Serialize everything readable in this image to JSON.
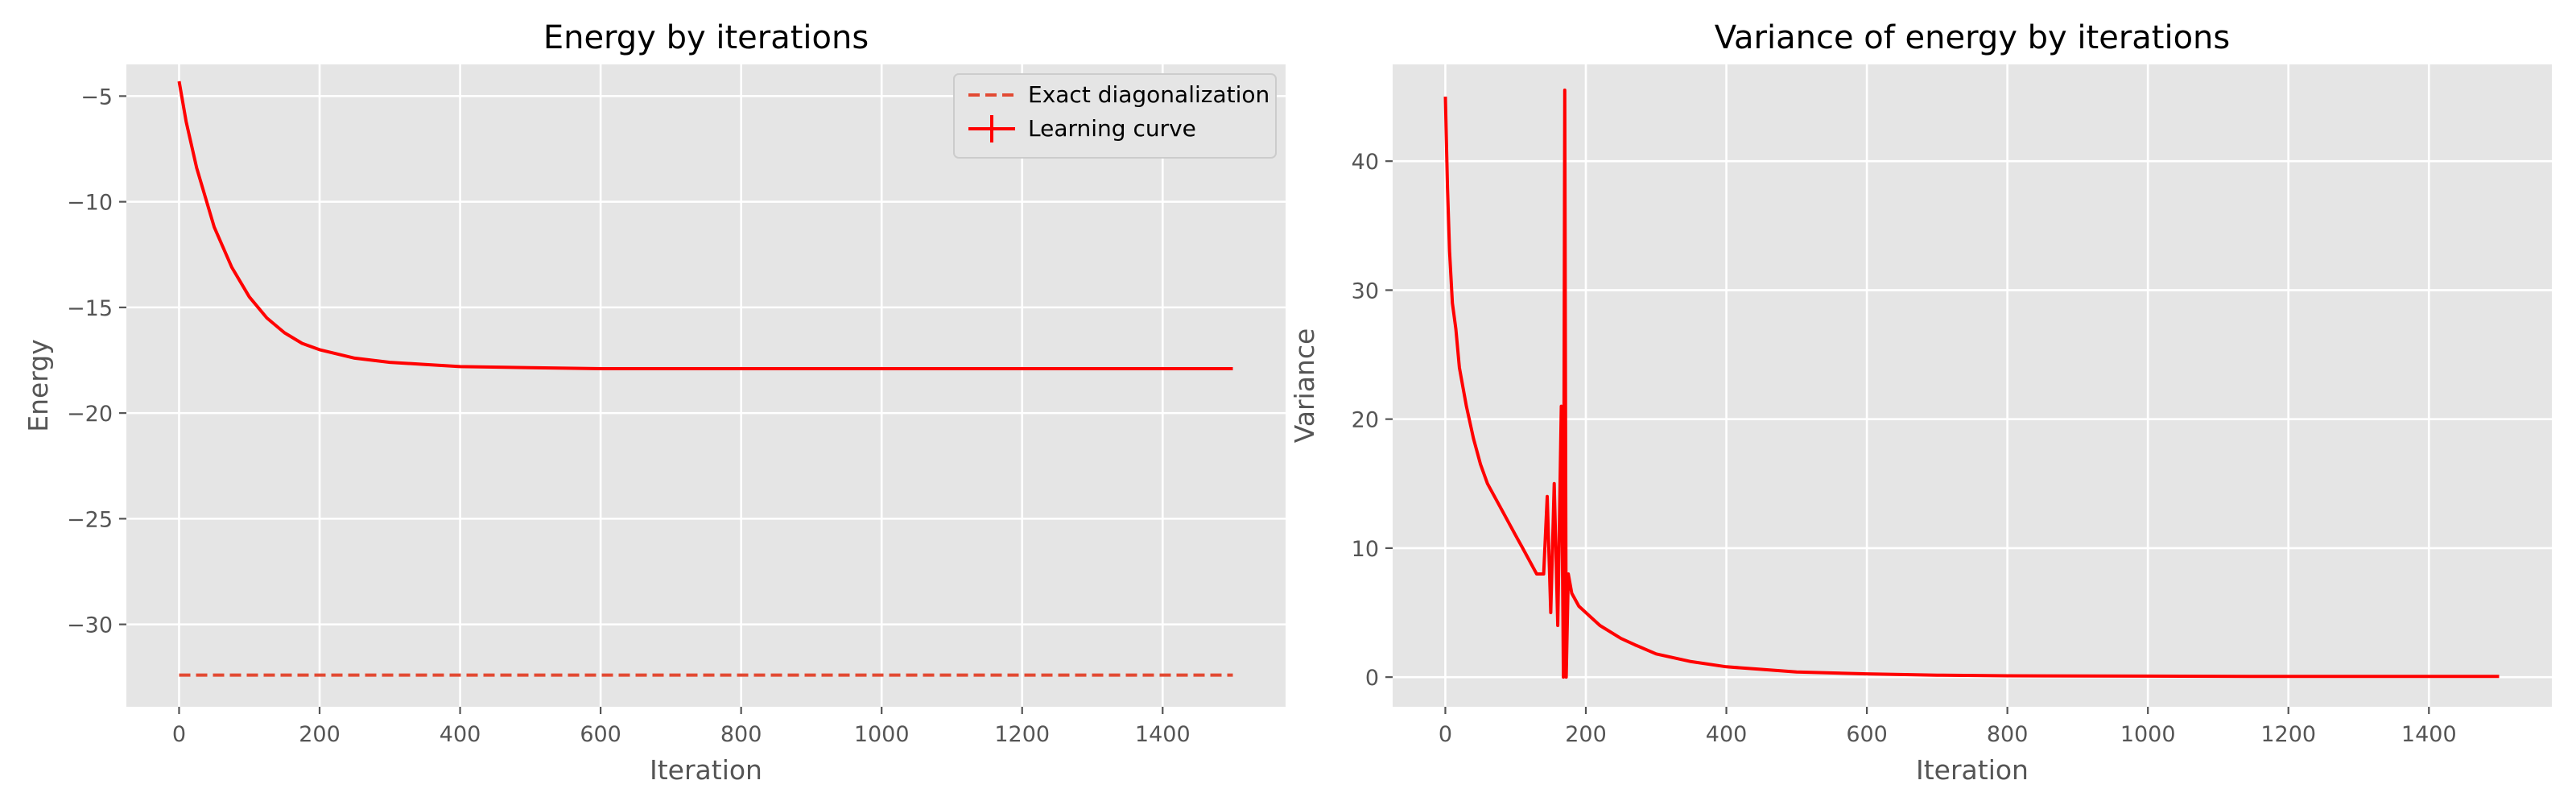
{
  "chart_data": [
    {
      "type": "line",
      "title": "Energy by iterations",
      "xlabel": "Iteration",
      "ylabel": "Energy",
      "xlim": [
        -75,
        1575
      ],
      "ylim": [
        -33.9,
        -3.5
      ],
      "xticks": [
        0,
        200,
        400,
        600,
        800,
        1000,
        1200,
        1400
      ],
      "xtick_labels": [
        "0",
        "200",
        "400",
        "600",
        "800",
        "1000",
        "1200",
        "1400"
      ],
      "yticks": [
        -5,
        -10,
        -15,
        -20,
        -25,
        -30
      ],
      "ytick_labels": [
        "−5",
        "−10",
        "−15",
        "−20",
        "−25",
        "−30"
      ],
      "grid": true,
      "legend_position": "top-right",
      "series": [
        {
          "name": "Exact diagonalization",
          "style": "dashed",
          "color": "#e24a33",
          "x": [
            0,
            1500
          ],
          "y": [
            -32.4,
            -32.4
          ]
        },
        {
          "name": "Learning curve",
          "style": "solid",
          "color": "#ff0000",
          "x": [
            0,
            10,
            25,
            50,
            75,
            100,
            125,
            150,
            175,
            200,
            250,
            300,
            350,
            400,
            500,
            600,
            800,
            1000,
            1200,
            1400,
            1500
          ],
          "y": [
            -4.3,
            -6.2,
            -8.4,
            -11.2,
            -13.1,
            -14.5,
            -15.5,
            -16.2,
            -16.7,
            -17.0,
            -17.4,
            -17.6,
            -17.7,
            -17.8,
            -17.85,
            -17.9,
            -17.9,
            -17.9,
            -17.9,
            -17.9,
            -17.9
          ]
        }
      ]
    },
    {
      "type": "line",
      "title": "Variance of energy by iterations",
      "xlabel": "Iteration",
      "ylabel": "Variance",
      "xlim": [
        -75,
        1575
      ],
      "ylim": [
        -2.3,
        47.5
      ],
      "xticks": [
        0,
        200,
        400,
        600,
        800,
        1000,
        1200,
        1400
      ],
      "xtick_labels": [
        "0",
        "200",
        "400",
        "600",
        "800",
        "1000",
        "1200",
        "1400"
      ],
      "yticks": [
        0,
        10,
        20,
        30,
        40
      ],
      "ytick_labels": [
        "0",
        "10",
        "20",
        "30",
        "40"
      ],
      "grid": true,
      "series": [
        {
          "style": "solid",
          "color": "#ff0000",
          "x": [
            0,
            3,
            6,
            10,
            15,
            20,
            30,
            40,
            50,
            60,
            75,
            90,
            100,
            110,
            120,
            130,
            140,
            145,
            150,
            155,
            160,
            165,
            168,
            170,
            172,
            175,
            180,
            190,
            200,
            220,
            250,
            270,
            300,
            350,
            400,
            450,
            500,
            600,
            700,
            800,
            1000,
            1200,
            1400,
            1500
          ],
          "y": [
            45.0,
            38.0,
            33.0,
            29.0,
            27.0,
            24.0,
            21.0,
            18.5,
            16.5,
            15.0,
            13.5,
            12.0,
            11.0,
            10.0,
            9.0,
            8.0,
            8.0,
            14.0,
            5.0,
            15.0,
            4.0,
            21.0,
            0.0,
            45.5,
            0.0,
            8.0,
            6.5,
            5.5,
            5.0,
            4.0,
            3.0,
            2.5,
            1.8,
            1.2,
            0.8,
            0.6,
            0.4,
            0.25,
            0.15,
            0.1,
            0.08,
            0.05,
            0.05,
            0.05
          ]
        }
      ]
    }
  ]
}
